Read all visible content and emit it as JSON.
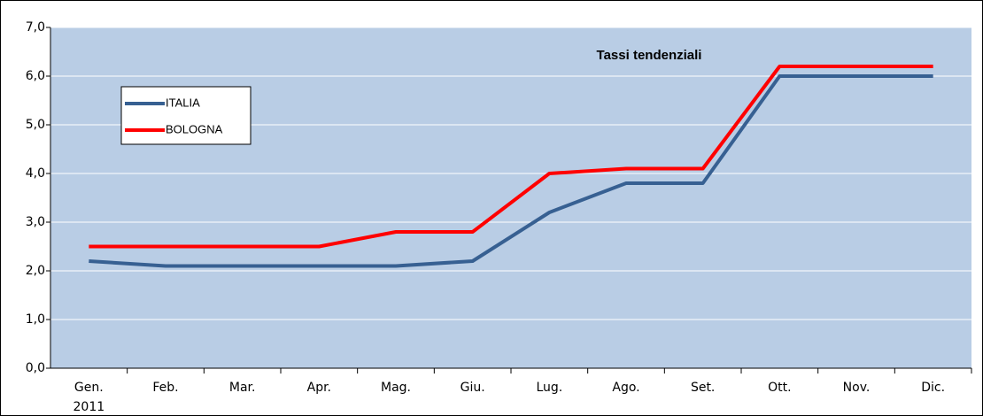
{
  "chart_data": {
    "type": "line",
    "title": "Tassi tendenziali",
    "categories": [
      "Gen.",
      "Feb.",
      "Mar.",
      "Apr.",
      "Mag.",
      "Giu.",
      "Lug.",
      "Ago.",
      "Set.",
      "Ott.",
      "Nov.",
      "Dic."
    ],
    "first_category_year": "2011",
    "series": [
      {
        "name": "ITALIA",
        "color": "#376092",
        "values": [
          2.2,
          2.1,
          2.1,
          2.1,
          2.1,
          2.2,
          3.2,
          3.8,
          3.8,
          6.0,
          6.0,
          6.0
        ]
      },
      {
        "name": "BOLOGNA",
        "color": "#ff0000",
        "values": [
          2.5,
          2.5,
          2.5,
          2.5,
          2.8,
          2.8,
          4.0,
          4.1,
          4.1,
          6.2,
          6.2,
          6.2
        ]
      }
    ],
    "ylim": [
      0,
      7
    ],
    "yticks": [
      {
        "value": 0,
        "label": "0,0"
      },
      {
        "value": 1,
        "label": "1,0"
      },
      {
        "value": 2,
        "label": "2,0"
      },
      {
        "value": 3,
        "label": "3,0"
      },
      {
        "value": 4,
        "label": "4,0"
      },
      {
        "value": 5,
        "label": "5,0"
      },
      {
        "value": 6,
        "label": "6,0"
      },
      {
        "value": 7,
        "label": "7,0"
      }
    ],
    "grid": true,
    "plot_background": "#b9cde5"
  }
}
